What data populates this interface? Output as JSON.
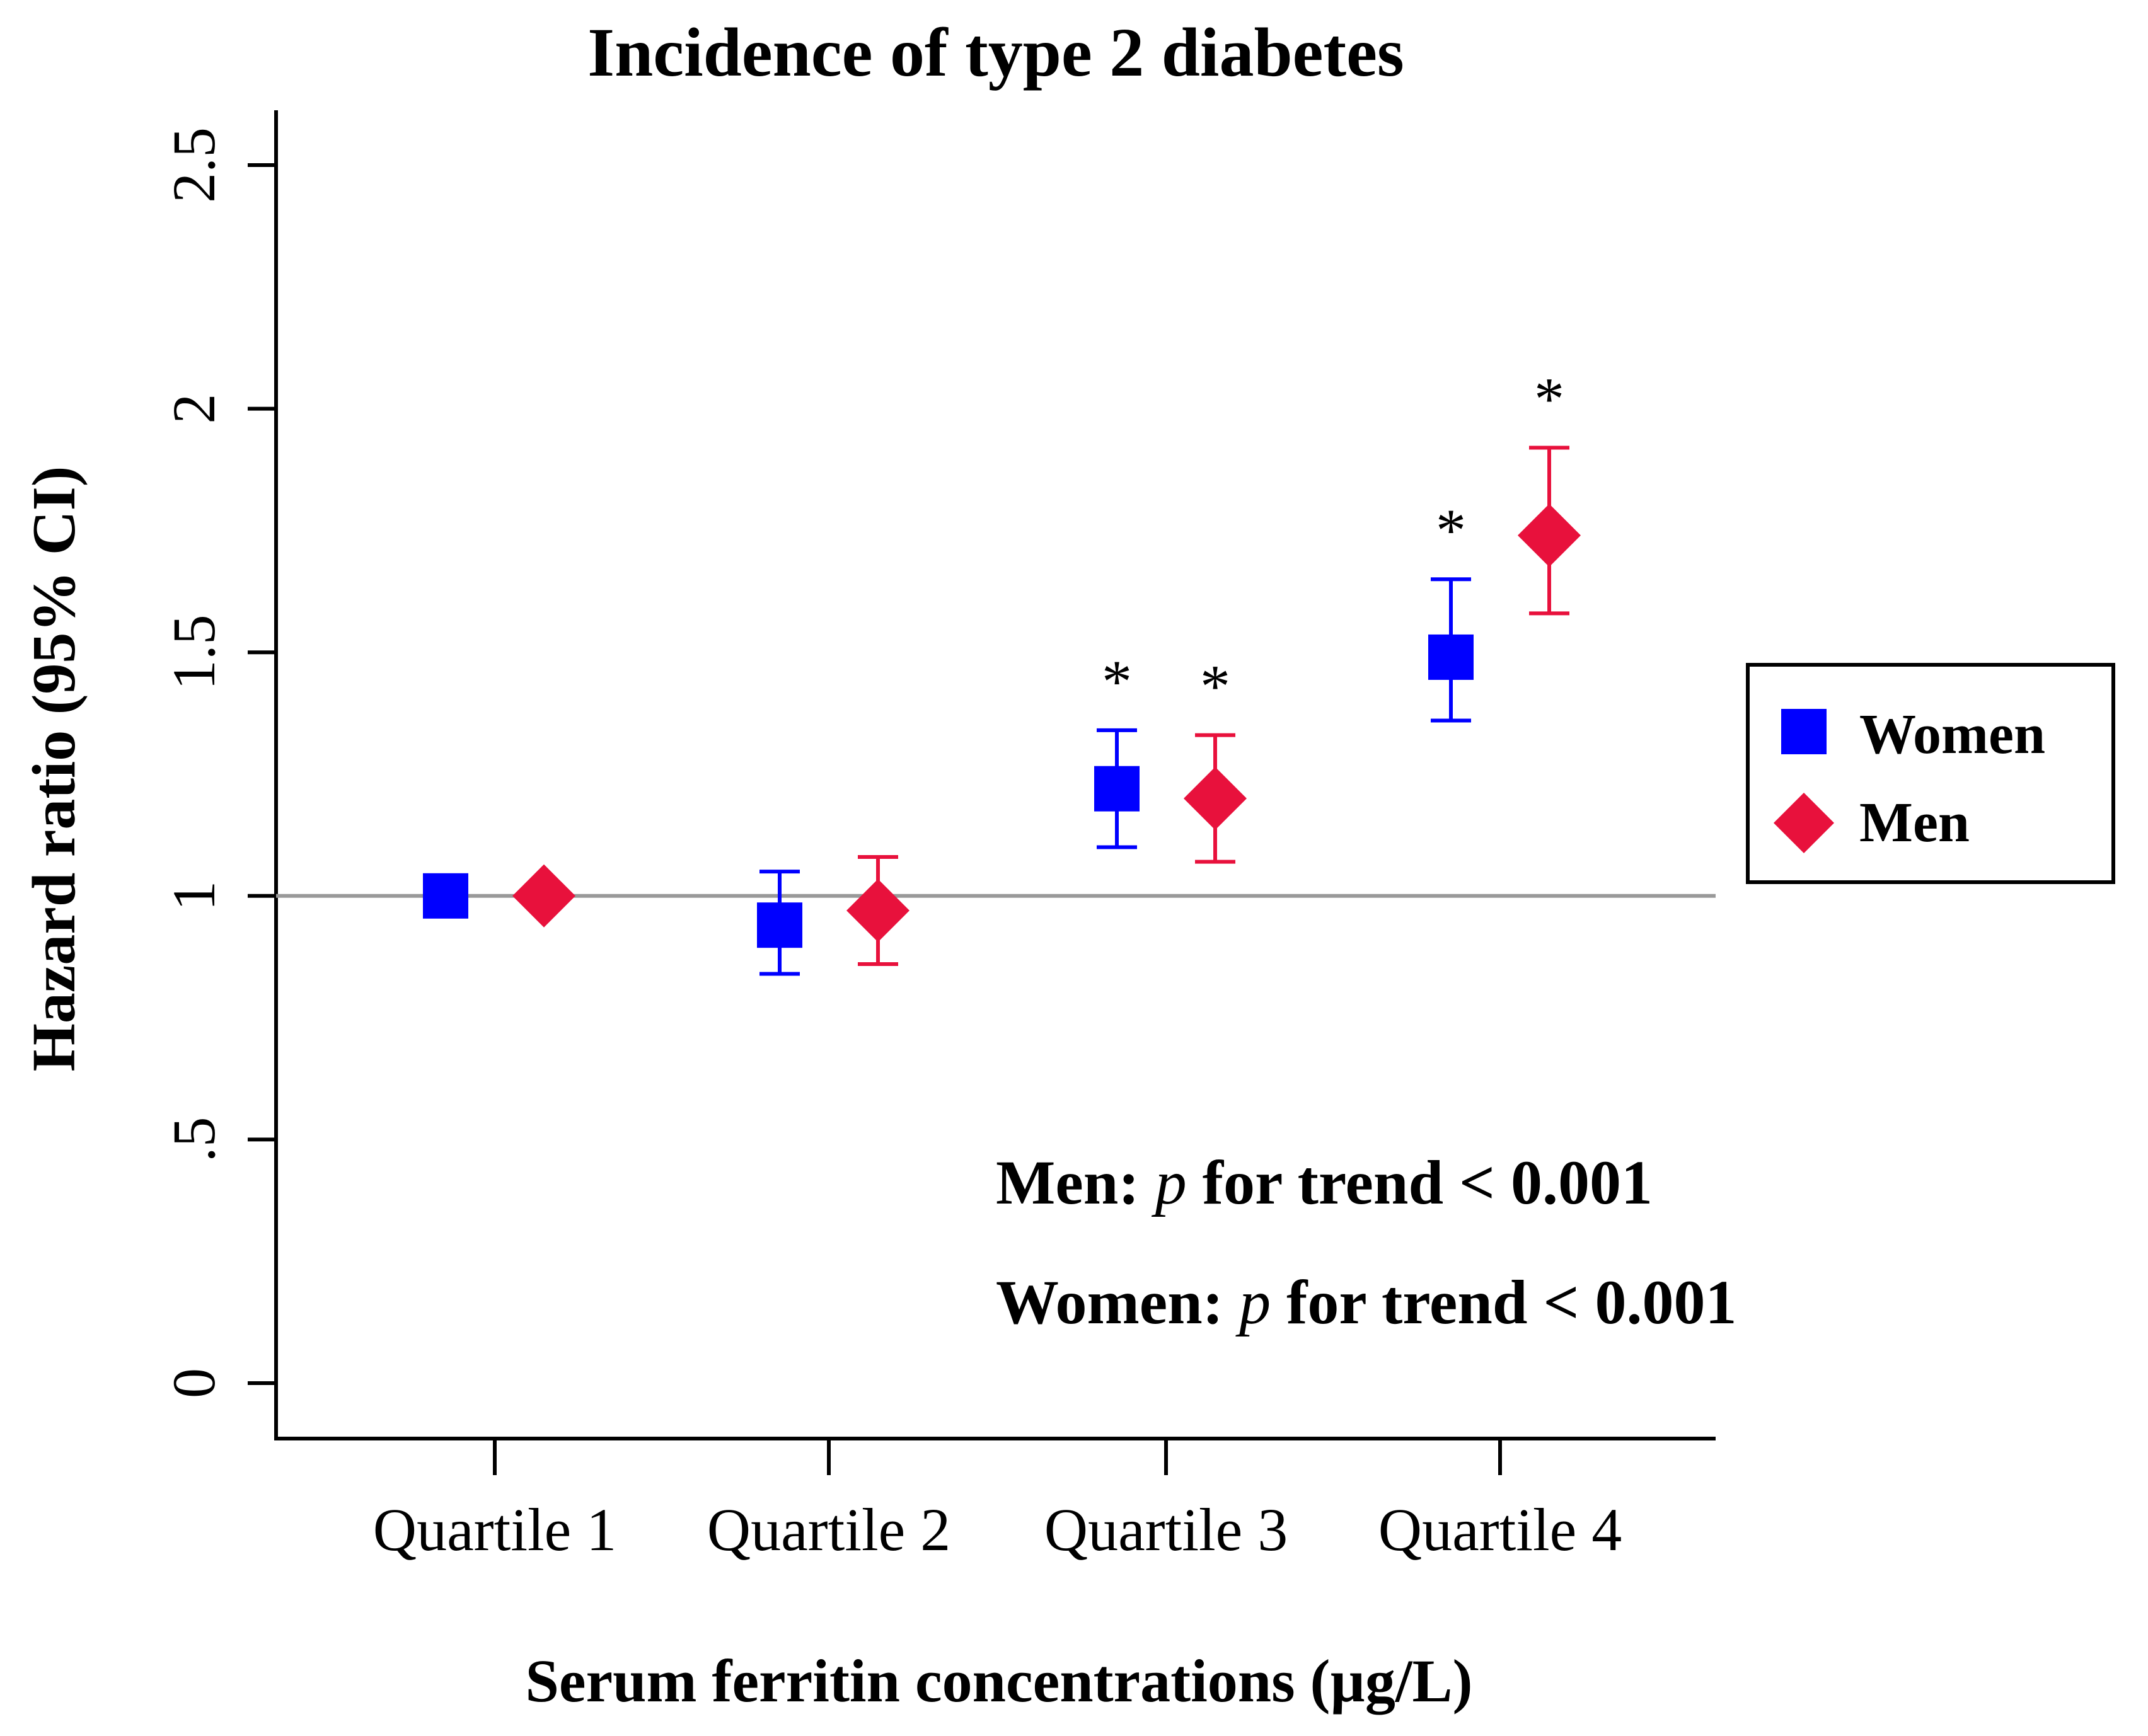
{
  "chart_data": {
    "type": "scatter",
    "title": "Incidence of type 2 diabetes",
    "xlabel": "Serum ferritin concentrations (µg/L)",
    "ylabel": "Hazard ratio  (95% CI)",
    "categories": [
      "Quartile 1",
      "Quartile 2",
      "Quartile 3",
      "Quartile 4"
    ],
    "ylim": [
      0,
      2.6
    ],
    "yticks": [
      {
        "value": 0,
        "label": "0"
      },
      {
        "value": 0.5,
        "label": ".5"
      },
      {
        "value": 1,
        "label": "1"
      },
      {
        "value": 1.5,
        "label": "1.5"
      },
      {
        "value": 2,
        "label": "2"
      },
      {
        "value": 2.5,
        "label": "2.5"
      }
    ],
    "reference_line": 1,
    "series": [
      {
        "name": "Women",
        "marker": "square",
        "color": "#0000ff",
        "values": [
          1.0,
          0.94,
          1.22,
          1.49
        ],
        "ci_lower": [
          null,
          0.84,
          1.1,
          1.36
        ],
        "ci_upper": [
          null,
          1.05,
          1.34,
          1.65
        ],
        "significant": [
          "",
          "",
          "*",
          "*"
        ]
      },
      {
        "name": "Men",
        "marker": "diamond",
        "color": "#e8113c",
        "values": [
          1.0,
          0.97,
          1.2,
          1.74
        ],
        "ci_lower": [
          null,
          0.86,
          1.07,
          1.58
        ],
        "ci_upper": [
          null,
          1.08,
          1.33,
          1.92
        ],
        "significant": [
          "",
          "",
          "*",
          "*"
        ]
      }
    ],
    "legend": {
      "position": "right"
    },
    "annotations": [
      {
        "label": "Men: ",
        "italic": "p",
        "rest": " for trend < 0.001"
      },
      {
        "label": "Women: ",
        "italic": "p",
        "rest": " for trend < 0.001"
      }
    ]
  }
}
